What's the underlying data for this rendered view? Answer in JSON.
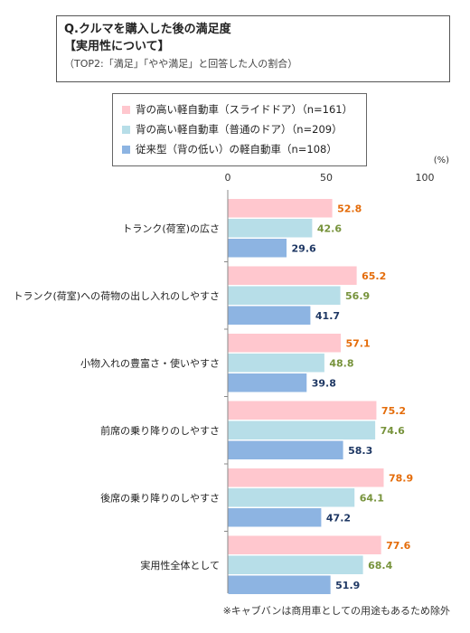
{
  "title": {
    "main": "Q.クルマを購入した後の満足度",
    "sub": "【実用性について】",
    "note": "（TOP2:「満足」「やや満足」と回答した人の割合）"
  },
  "footnote": "※キャブバンは商用車としての用途もあるため除外",
  "colors": {
    "series1_bar": "#FFC7CE",
    "series2_bar": "#B7DEE8",
    "series3_bar": "#8DB4E2",
    "series1_label": "#E46C0A",
    "series2_label": "#77933C",
    "series3_label": "#1F3864"
  },
  "chart_data": {
    "type": "bar",
    "orientation": "horizontal",
    "unit_label": "(%)",
    "xlim": [
      0,
      100
    ],
    "xticks": [
      "0",
      "50",
      "100"
    ],
    "categories": [
      "トランク(荷室)の広さ",
      "トランク(荷室)への荷物の出し入れのしやすさ",
      "小物入れの豊富さ・使いやすさ",
      "前席の乗り降りのしやすさ",
      "後席の乗り降りのしやすさ",
      "実用性全体として"
    ],
    "series": [
      {
        "name": "背の高い軽自動車（スライドドア）（n=161）",
        "values": [
          52.8,
          65.2,
          57.1,
          75.2,
          78.9,
          77.6
        ]
      },
      {
        "name": "背の高い軽自動車（普通のドア）（n=209）",
        "values": [
          42.6,
          56.9,
          48.8,
          74.6,
          64.1,
          68.4
        ]
      },
      {
        "name": "従来型（背の低い）の軽自動車（n=108）",
        "values": [
          29.6,
          41.7,
          39.8,
          58.3,
          47.2,
          51.9
        ]
      }
    ],
    "grid": false,
    "legend_position": "top"
  }
}
